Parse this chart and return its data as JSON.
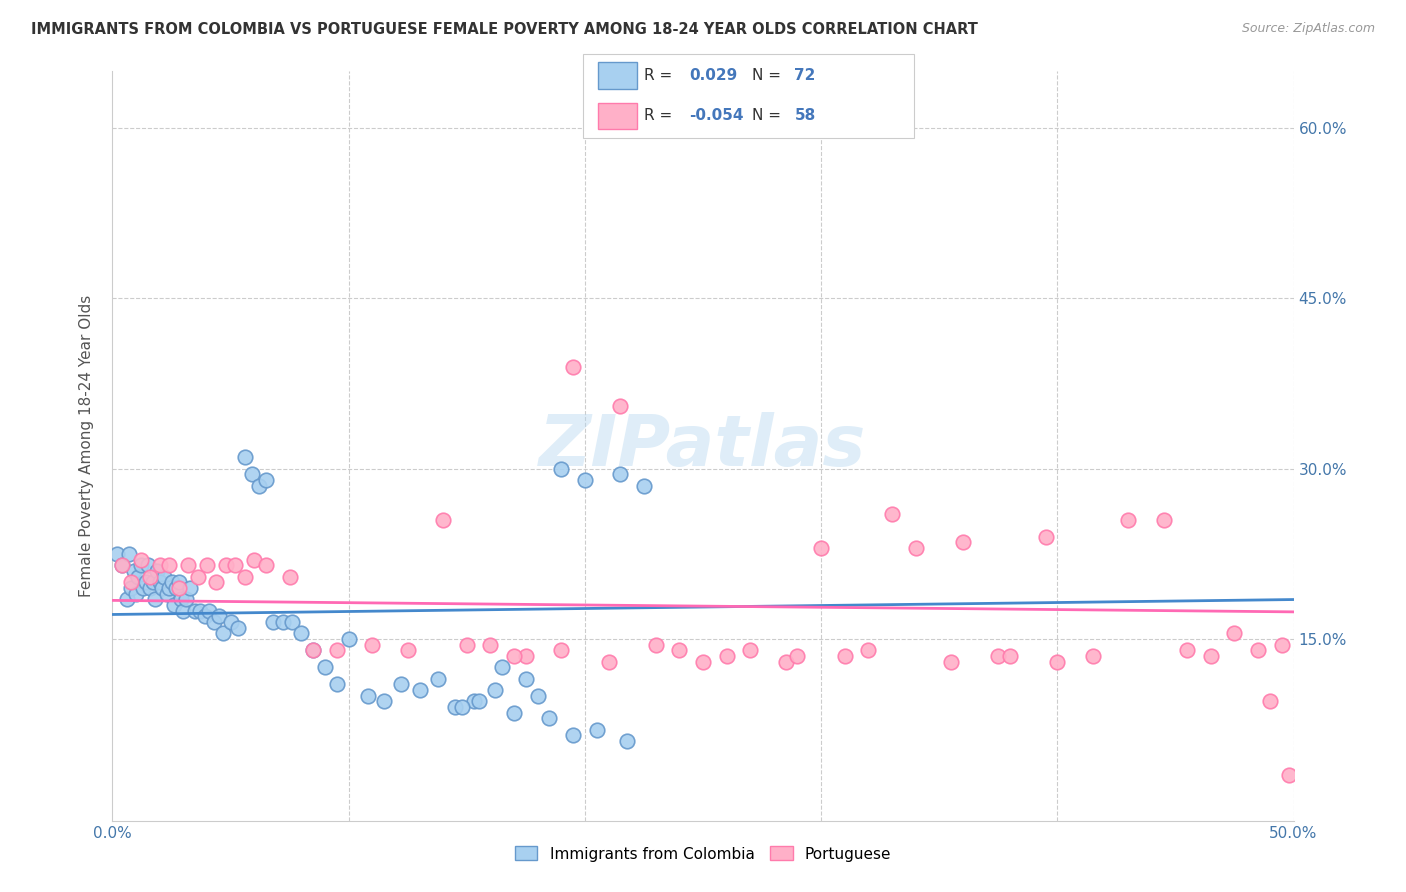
{
  "title": "IMMIGRANTS FROM COLOMBIA VS PORTUGUESE FEMALE POVERTY AMONG 18-24 YEAR OLDS CORRELATION CHART",
  "source": "Source: ZipAtlas.com",
  "ylabel": "Female Poverty Among 18-24 Year Olds",
  "xlim": [
    0.0,
    0.5
  ],
  "ylim": [
    -0.01,
    0.65
  ],
  "ytick_vals": [
    0.0,
    0.15,
    0.3,
    0.45,
    0.6
  ],
  "ytick_labels_right": [
    "",
    "15.0%",
    "30.0%",
    "45.0%",
    "60.0%"
  ],
  "xtick_vals": [
    0.0,
    0.1,
    0.2,
    0.3,
    0.4,
    0.5
  ],
  "xtick_labels": [
    "0.0%",
    "",
    "",
    "",
    "",
    "50.0%"
  ],
  "blue_fill": "#A8D0F0",
  "blue_edge": "#6699CC",
  "pink_fill": "#FFB0C8",
  "pink_edge": "#FF7BAC",
  "blue_line_color": "#4488CC",
  "pink_line_color": "#FF69B4",
  "r_blue": 0.029,
  "n_blue": 72,
  "r_pink": -0.054,
  "n_pink": 58,
  "legend_label_blue": "Immigrants from Colombia",
  "legend_label_pink": "Portuguese",
  "watermark": "ZIPatlas",
  "blue_scatter_x": [
    0.002,
    0.004,
    0.006,
    0.007,
    0.008,
    0.009,
    0.01,
    0.011,
    0.012,
    0.013,
    0.014,
    0.015,
    0.016,
    0.017,
    0.018,
    0.019,
    0.02,
    0.021,
    0.022,
    0.023,
    0.024,
    0.025,
    0.026,
    0.027,
    0.028,
    0.029,
    0.03,
    0.031,
    0.033,
    0.035,
    0.037,
    0.039,
    0.041,
    0.043,
    0.045,
    0.047,
    0.05,
    0.053,
    0.056,
    0.059,
    0.062,
    0.065,
    0.068,
    0.072,
    0.076,
    0.08,
    0.085,
    0.09,
    0.095,
    0.1,
    0.108,
    0.115,
    0.122,
    0.13,
    0.138,
    0.145,
    0.153,
    0.162,
    0.17,
    0.18,
    0.19,
    0.2,
    0.215,
    0.225,
    0.165,
    0.175,
    0.155,
    0.148,
    0.185,
    0.195,
    0.205,
    0.218
  ],
  "blue_scatter_y": [
    0.225,
    0.215,
    0.185,
    0.225,
    0.195,
    0.21,
    0.19,
    0.205,
    0.215,
    0.195,
    0.2,
    0.215,
    0.195,
    0.2,
    0.185,
    0.21,
    0.2,
    0.195,
    0.205,
    0.19,
    0.195,
    0.2,
    0.18,
    0.195,
    0.2,
    0.185,
    0.175,
    0.185,
    0.195,
    0.175,
    0.175,
    0.17,
    0.175,
    0.165,
    0.17,
    0.155,
    0.165,
    0.16,
    0.31,
    0.295,
    0.285,
    0.29,
    0.165,
    0.165,
    0.165,
    0.155,
    0.14,
    0.125,
    0.11,
    0.15,
    0.1,
    0.095,
    0.11,
    0.105,
    0.115,
    0.09,
    0.095,
    0.105,
    0.085,
    0.1,
    0.3,
    0.29,
    0.295,
    0.285,
    0.125,
    0.115,
    0.095,
    0.09,
    0.08,
    0.065,
    0.07,
    0.06
  ],
  "pink_scatter_x": [
    0.004,
    0.008,
    0.012,
    0.016,
    0.02,
    0.024,
    0.028,
    0.032,
    0.036,
    0.04,
    0.044,
    0.048,
    0.052,
    0.056,
    0.06,
    0.065,
    0.075,
    0.085,
    0.095,
    0.11,
    0.125,
    0.14,
    0.16,
    0.175,
    0.195,
    0.215,
    0.24,
    0.26,
    0.285,
    0.31,
    0.33,
    0.355,
    0.375,
    0.395,
    0.415,
    0.43,
    0.445,
    0.455,
    0.465,
    0.475,
    0.485,
    0.49,
    0.495,
    0.498,
    0.3,
    0.32,
    0.34,
    0.36,
    0.38,
    0.4,
    0.27,
    0.29,
    0.25,
    0.23,
    0.21,
    0.19,
    0.17,
    0.15
  ],
  "pink_scatter_y": [
    0.215,
    0.2,
    0.22,
    0.205,
    0.215,
    0.215,
    0.195,
    0.215,
    0.205,
    0.215,
    0.2,
    0.215,
    0.215,
    0.205,
    0.22,
    0.215,
    0.205,
    0.14,
    0.14,
    0.145,
    0.14,
    0.255,
    0.145,
    0.135,
    0.39,
    0.355,
    0.14,
    0.135,
    0.13,
    0.135,
    0.26,
    0.13,
    0.135,
    0.24,
    0.135,
    0.255,
    0.255,
    0.14,
    0.135,
    0.155,
    0.14,
    0.095,
    0.145,
    0.03,
    0.23,
    0.14,
    0.23,
    0.235,
    0.135,
    0.13,
    0.14,
    0.135,
    0.13,
    0.145,
    0.13,
    0.14,
    0.135,
    0.145
  ]
}
